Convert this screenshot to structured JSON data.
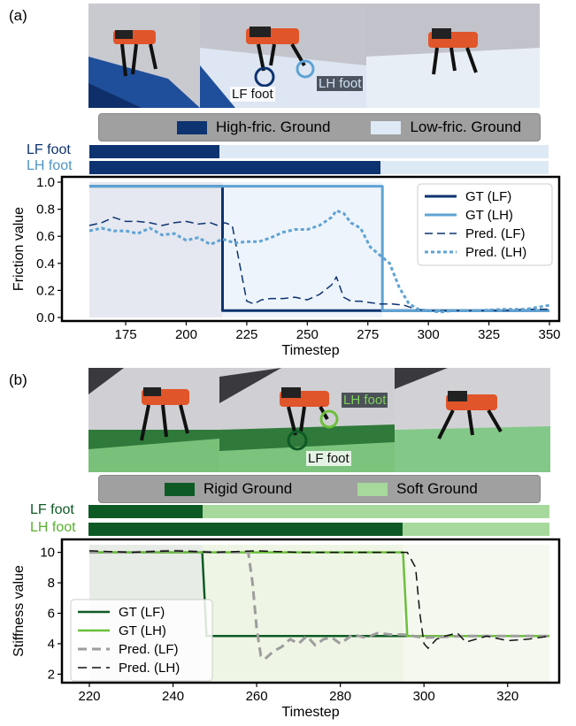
{
  "panel_a": {
    "label": "(a)",
    "photo_callouts": {
      "lf": "LF foot",
      "lh": "LH foot"
    },
    "legend": {
      "high": "High-fric. Ground",
      "low": "Low-fric. Ground"
    },
    "foot_labels": {
      "lf": "LF foot",
      "lh": "LH foot"
    },
    "colors": {
      "dark": "#0d3370",
      "light": "#dde9f5",
      "lh": "#4f95c7"
    }
  },
  "panel_b": {
    "label": "(b)",
    "photo_callouts": {
      "lf": "LF foot",
      "lh": "LH foot"
    },
    "legend": {
      "rigid": "Rigid Ground",
      "soft": "Soft Ground"
    },
    "foot_labels": {
      "lf": "LF foot",
      "lh": "LH foot"
    },
    "colors": {
      "dark": "#0e5a25",
      "light": "#a6d99b",
      "lh": "#5ab031"
    }
  },
  "chart_data": [
    {
      "type": "line",
      "xlabel": "Timestep",
      "ylabel": "Friction value",
      "xlim": [
        160,
        350
      ],
      "ylim": [
        0.0,
        1.0
      ],
      "xticks": [
        175,
        200,
        225,
        250,
        275,
        300,
        325,
        350
      ],
      "yticks": [
        0.0,
        0.2,
        0.4,
        0.6,
        0.8,
        1.0
      ],
      "ytick_labels": [
        "0.0",
        "0.2",
        "0.4",
        "0.6",
        "0.8",
        "1.0"
      ],
      "legend_position": "top-right",
      "background_regions": [
        {
          "from": 160,
          "to": 215,
          "color": "#e5e8f0"
        },
        {
          "from": 215,
          "to": 281,
          "color": "#eef4fb"
        }
      ],
      "series": [
        {
          "name": "GT (LF)",
          "color": "#0d3370",
          "style": "solid",
          "width": 3,
          "x": [
            160,
            215,
            215,
            350
          ],
          "y": [
            0.97,
            0.97,
            0.05,
            0.05
          ]
        },
        {
          "name": "GT (LH)",
          "color": "#5fa3d4",
          "style": "solid",
          "width": 3,
          "x": [
            160,
            281,
            281,
            350
          ],
          "y": [
            0.97,
            0.97,
            0.05,
            0.05
          ]
        },
        {
          "name": "Pred. (LF)",
          "color": "#0d3370",
          "style": "dashed",
          "width": 1.5,
          "x": [
            160,
            165,
            170,
            175,
            180,
            185,
            190,
            195,
            200,
            205,
            210,
            213,
            216,
            219,
            222,
            225,
            228,
            231,
            235,
            240,
            245,
            250,
            255,
            260,
            262,
            265,
            268,
            272,
            276,
            280,
            285,
            290,
            295,
            300,
            310,
            320,
            330,
            340,
            350
          ],
          "y": [
            0.68,
            0.7,
            0.74,
            0.71,
            0.71,
            0.7,
            0.68,
            0.7,
            0.71,
            0.69,
            0.7,
            0.68,
            0.7,
            0.68,
            0.4,
            0.12,
            0.1,
            0.13,
            0.14,
            0.14,
            0.15,
            0.13,
            0.17,
            0.24,
            0.3,
            0.15,
            0.12,
            0.12,
            0.11,
            0.1,
            0.1,
            0.09,
            0.06,
            0.05,
            0.05,
            0.05,
            0.05,
            0.06,
            0.06
          ]
        },
        {
          "name": "Pred. (LH)",
          "color": "#5fa3d4",
          "style": "dotted",
          "width": 3,
          "x": [
            160,
            165,
            170,
            175,
            180,
            185,
            190,
            195,
            200,
            205,
            210,
            215,
            220,
            225,
            230,
            235,
            240,
            245,
            250,
            255,
            260,
            262,
            265,
            268,
            272,
            276,
            280,
            284,
            288,
            292,
            296,
            300,
            305,
            310,
            320,
            330,
            340,
            350
          ],
          "y": [
            0.64,
            0.66,
            0.64,
            0.64,
            0.62,
            0.66,
            0.61,
            0.62,
            0.57,
            0.59,
            0.54,
            0.58,
            0.55,
            0.56,
            0.56,
            0.59,
            0.63,
            0.65,
            0.65,
            0.68,
            0.74,
            0.79,
            0.77,
            0.7,
            0.66,
            0.52,
            0.46,
            0.4,
            0.22,
            0.1,
            0.06,
            0.05,
            0.04,
            0.05,
            0.05,
            0.06,
            0.06,
            0.09
          ]
        }
      ]
    },
    {
      "type": "line",
      "xlabel": "Timestep",
      "ylabel": "Stiffness value",
      "xlim": [
        220,
        330
      ],
      "ylim": [
        1.5,
        10.5
      ],
      "xticks": [
        220,
        240,
        260,
        280,
        300,
        320
      ],
      "yticks": [
        2,
        4,
        6,
        8,
        10
      ],
      "ytick_labels": [
        "2",
        "4",
        "6",
        "8",
        "10"
      ],
      "legend_position": "bottom-left",
      "background_regions": [
        {
          "from": 220,
          "to": 247,
          "color": "#e7ece6"
        },
        {
          "from": 247,
          "to": 295,
          "color": "#eef5e5"
        },
        {
          "from": 295,
          "to": 330,
          "color": "#f4f8ef"
        }
      ],
      "series": [
        {
          "name": "GT (LF)",
          "color": "#0e5a25",
          "style": "solid",
          "width": 2.5,
          "x": [
            220,
            247,
            248,
            330
          ],
          "y": [
            10.0,
            10.0,
            4.5,
            4.5
          ]
        },
        {
          "name": "GT (LH)",
          "color": "#6cbf3c",
          "style": "solid",
          "width": 2.5,
          "x": [
            220,
            295,
            296,
            330
          ],
          "y": [
            10.0,
            10.0,
            4.5,
            4.5
          ]
        },
        {
          "name": "Pred. (LF)",
          "color": "#9d9d9d",
          "style": "dashed",
          "width": 3,
          "x": [
            220,
            230,
            240,
            250,
            255,
            258,
            259,
            260,
            261,
            262,
            264,
            266,
            268,
            270,
            272,
            274,
            276,
            278,
            280,
            283,
            286,
            289,
            292,
            295,
            300,
            310,
            320,
            330
          ],
          "y": [
            10.0,
            10.0,
            10.1,
            10.0,
            10.0,
            10.0,
            8.0,
            5.0,
            3.2,
            3.0,
            3.5,
            3.8,
            4.3,
            4.0,
            4.5,
            3.9,
            4.3,
            4.4,
            4.0,
            4.6,
            4.4,
            4.7,
            4.6,
            4.6,
            4.4,
            4.5,
            4.5,
            4.5
          ]
        },
        {
          "name": "Pred. (LH)",
          "color": "#111111",
          "style": "dashed",
          "width": 1.5,
          "x": [
            220,
            230,
            240,
            250,
            260,
            270,
            280,
            290,
            296,
            298,
            299,
            300,
            301,
            303,
            305,
            308,
            310,
            315,
            320,
            325,
            330
          ],
          "y": [
            10.1,
            10.0,
            10.1,
            10.0,
            10.1,
            10.0,
            10.0,
            10.0,
            10.0,
            9.0,
            6.0,
            4.0,
            3.7,
            4.3,
            4.5,
            4.7,
            4.1,
            4.5,
            4.2,
            4.3,
            4.5
          ]
        }
      ]
    }
  ]
}
